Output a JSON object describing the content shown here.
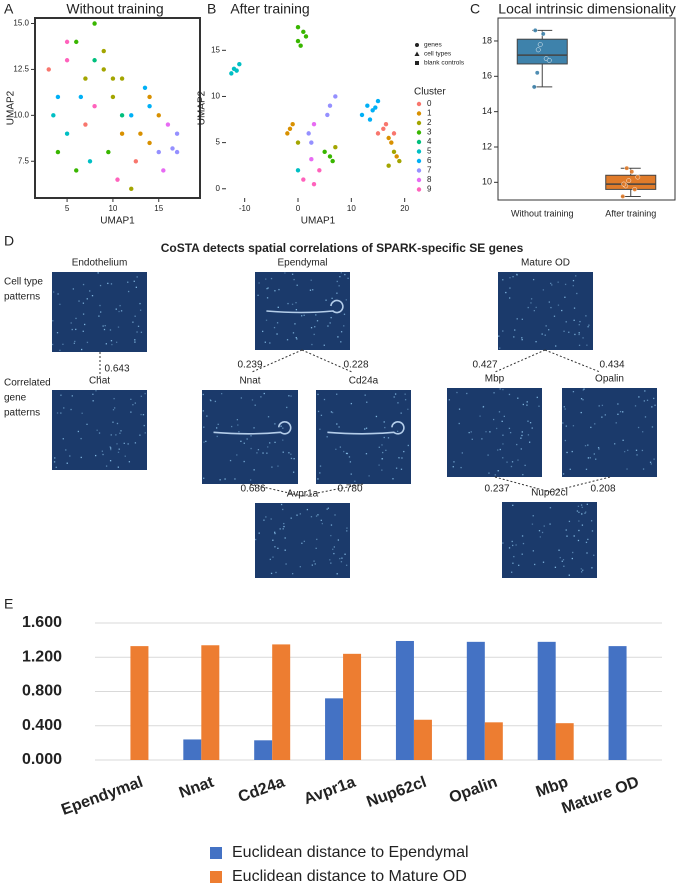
{
  "panel_a": {
    "label": "A",
    "title": "Without training",
    "xlabel": "UMAP1",
    "ylabel": "UMAP2",
    "xlim": [
      1.5,
      19.5
    ],
    "ylim": [
      5.5,
      15.3
    ],
    "xticks": [
      5,
      10,
      15
    ],
    "yticks": [
      {
        "value": 7.5,
        "label": "7.5"
      },
      {
        "value": 10,
        "label": "10.0"
      },
      {
        "value": 12.5,
        "label": "12.5"
      },
      {
        "value": 15,
        "label": "15.0"
      }
    ],
    "x": [
      3,
      4,
      5,
      6,
      7,
      8,
      9,
      10,
      11,
      12,
      13,
      14,
      15,
      16,
      17,
      3.5,
      5,
      6.5,
      8,
      9.5,
      11,
      12.5,
      14,
      15.5,
      17,
      4,
      6,
      7.5,
      9,
      10.5,
      12,
      13.5,
      15,
      16.5,
      5,
      8,
      11,
      14,
      7,
      10
    ],
    "y": [
      12.5,
      11,
      13,
      14,
      12,
      15,
      13.5,
      11,
      12,
      10,
      9,
      10.5,
      8,
      9.5,
      9,
      10,
      9,
      11,
      10.5,
      8,
      9,
      7.5,
      8.5,
      7,
      8,
      8,
      7,
      7.5,
      12.5,
      6.5,
      6,
      11.5,
      10,
      8.2,
      14,
      13,
      10,
      11,
      9.5,
      12
    ],
    "cluster": [
      0,
      6,
      9,
      3,
      2,
      3,
      2,
      2,
      2,
      6,
      1,
      6,
      7,
      8,
      7,
      5,
      5,
      6,
      9,
      3,
      1,
      0,
      1,
      8,
      7,
      3,
      3,
      5,
      2,
      9,
      2,
      6,
      1,
      7,
      9,
      4,
      4,
      1,
      0,
      2
    ]
  },
  "panel_b": {
    "label": "B",
    "title": "After training",
    "xlabel": "UMAP1",
    "ylabel": "UMAP2",
    "xlim": [
      -13.5,
      21
    ],
    "ylim": [
      -1,
      18.5
    ],
    "xticks": [
      -10,
      0,
      10,
      20
    ],
    "yticks": [
      0,
      5,
      10,
      15
    ],
    "x": [
      -12,
      -11,
      -12.5,
      -11.5,
      0,
      1,
      0.5,
      1.5,
      0,
      13,
      14,
      12,
      15,
      13.5,
      14.5,
      15,
      16,
      17,
      16.5,
      18,
      17.5,
      18,
      19,
      18.5,
      17,
      -2,
      -1,
      0,
      -1.5,
      5,
      6,
      7,
      6.5,
      6,
      7,
      5.5,
      2,
      3,
      2.5,
      0,
      1,
      3,
      4,
      2.5
    ],
    "y": [
      13,
      13.5,
      12.5,
      12.8,
      16,
      17,
      15.5,
      16.5,
      17.5,
      9,
      8.5,
      8,
      9.5,
      7.5,
      8.8,
      6,
      6.5,
      5.5,
      7,
      6,
      5,
      4,
      3,
      3.5,
      2.5,
      6,
      7,
      5,
      6.5,
      4,
      3.5,
      4.5,
      3,
      9,
      10,
      8,
      6,
      7,
      5,
      2,
      1,
      0.5,
      2,
      3.2
    ],
    "cluster": [
      5,
      5,
      5,
      5,
      3,
      3,
      3,
      3,
      3,
      6,
      6,
      6,
      6,
      6,
      6,
      0,
      0,
      1,
      0,
      0,
      1,
      2,
      2,
      1,
      2,
      1,
      1,
      2,
      1,
      3,
      3,
      2,
      3,
      7,
      7,
      7,
      7,
      8,
      7,
      5,
      9,
      9,
      9,
      8
    ],
    "shape_legend": [
      "genes",
      "cell types",
      "blank controls"
    ],
    "cluster_title": "Cluster",
    "cluster_labels": [
      "0",
      "1",
      "2",
      "3",
      "4",
      "5",
      "6",
      "7",
      "8",
      "9"
    ],
    "cluster_colors": [
      "#F8766D",
      "#D89000",
      "#A3A500",
      "#39B600",
      "#00BF7D",
      "#00BFC4",
      "#00B0F6",
      "#9590FF",
      "#E76BF3",
      "#FF62BC"
    ]
  },
  "panel_c": {
    "label": "C",
    "title": "Local intrinsic dimensionality",
    "type": "box",
    "categories": [
      "Without training",
      "After training"
    ],
    "ylim": [
      9,
      19.3
    ],
    "yticks": [
      10,
      12,
      14,
      16,
      18
    ],
    "colors": [
      "#3e82ab",
      "#e07b2a"
    ],
    "boxes": [
      {
        "low": 15.4,
        "q1": 16.7,
        "median": 17.2,
        "q3": 18.1,
        "high": 18.6
      },
      {
        "low": 9.2,
        "q1": 9.6,
        "median": 9.9,
        "q3": 10.4,
        "high": 10.8
      }
    ],
    "points": [
      [
        15.4,
        16.2,
        17.8,
        18.4,
        17.0,
        16.9,
        18.6,
        17.5
      ],
      [
        9.2,
        9.8,
        10.1,
        10.6,
        9.6,
        10.3,
        9.9,
        10.8
      ]
    ]
  },
  "panel_d": {
    "label": "D",
    "title": "CoSTA detects spatial correlations of SPARK-specific SE genes",
    "row_labels": [
      [
        "Cell type",
        "patterns"
      ],
      [
        "Correlated",
        "gene",
        "patterns"
      ]
    ],
    "tiles": [
      "Endothelium",
      "Ependymal",
      "Mature OD",
      "Chat",
      "Nnat",
      "Cd24a",
      "Mbp",
      "Opalin",
      "Avpr1a",
      "Nup62cl"
    ],
    "correlations": [
      "0.643",
      "0.239",
      "0.228",
      "0.427",
      "0.434",
      "0.686",
      "0.780",
      "0.237",
      "0.208"
    ]
  },
  "panel_e": {
    "label": "E",
    "type": "bar",
    "categories": [
      "Ependymal",
      "Nnat",
      "Cd24a",
      "Avpr1a",
      "Nup62cl",
      "Opalin",
      "Mbp",
      "Mature OD"
    ],
    "series": [
      {
        "name": "Euclidean distance to Ependymal",
        "color": "#4472c4",
        "values": [
          0,
          0.24,
          0.23,
          0.72,
          1.39,
          1.38,
          1.38,
          1.33
        ]
      },
      {
        "name": "Euclidean distance to Mature OD",
        "color": "#ed7d31",
        "values": [
          1.33,
          1.34,
          1.35,
          1.24,
          0.47,
          0.44,
          0.43,
          0
        ]
      }
    ],
    "ylim": [
      0,
      1.6
    ],
    "yticks": [
      {
        "value": 0,
        "label": "0.000"
      },
      {
        "value": 0.4,
        "label": "0.400"
      },
      {
        "value": 0.8,
        "label": "0.800"
      },
      {
        "value": 1.2,
        "label": "1.200"
      },
      {
        "value": 1.6,
        "label": "1.600"
      }
    ],
    "grid": true
  }
}
